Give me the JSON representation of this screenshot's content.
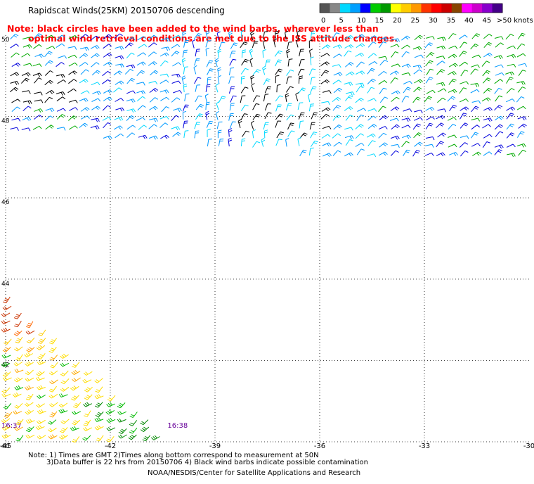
{
  "header": {
    "title": "Rapidscat Winds(25KM) 20150706 descending",
    "note_line1": "Note: black circles have been added to the wind barbs, wherever less than",
    "note_line2": "optimal wind retrieval conditions are met due to the ISS attitude changes."
  },
  "legend": {
    "labels": [
      "0",
      "5",
      "10",
      "15",
      "20",
      "25",
      "30",
      "35",
      "40",
      "45",
      ">50 knots"
    ],
    "colors": [
      "#555555",
      "#888888",
      "#00d8ff",
      "#00a0ff",
      "#0000ff",
      "#00cc00",
      "#009900",
      "#ffff00",
      "#ffcc00",
      "#ff9900",
      "#ff3300",
      "#ff0000",
      "#cc0000",
      "#884400",
      "#ff00ff",
      "#cc00cc",
      "#8800cc",
      "#440088"
    ]
  },
  "footer": {
    "line1": "Note: 1) Times are GMT 2)Times along bottom correspond to measurement at 50N",
    "line2": "3)Data buffer is 22 hrs from 20150706 4) Black wind barbs indicate possible contamination",
    "credit": "NOAA/NESDIS/Center for Satellite Applications and Research"
  },
  "chart_data": {
    "type": "wind-barb map",
    "xlim": [
      -45,
      -30
    ],
    "ylim": [
      40,
      50
    ],
    "x_ticks": [
      -45,
      -42,
      -39,
      -36,
      -33,
      -30
    ],
    "x_tick_labels": [
      "-45",
      "-42",
      "-39",
      "-36",
      "-33",
      "-30"
    ],
    "y_ticks": [
      40,
      42,
      44,
      46,
      48,
      50
    ],
    "y_tick_labels": [
      "40",
      "42",
      "44",
      "46",
      "48",
      "50"
    ],
    "grid": true,
    "pass_times": [
      {
        "label": "16:37",
        "x": -45
      },
      {
        "label": "16:38",
        "x": -40.2
      }
    ],
    "swaths": [
      {
        "name": "northern swath",
        "lat_range": [
          47.0,
          50.0
        ],
        "lon_range": [
          -45,
          -30
        ],
        "dominant_speed_knots": [
          5,
          20
        ]
      },
      {
        "name": "southern swath",
        "lat_range": [
          40.0,
          43.8
        ],
        "lon_range": [
          -45,
          -40.2
        ],
        "dominant_speed_knots": [
          20,
          35
        ]
      }
    ]
  }
}
